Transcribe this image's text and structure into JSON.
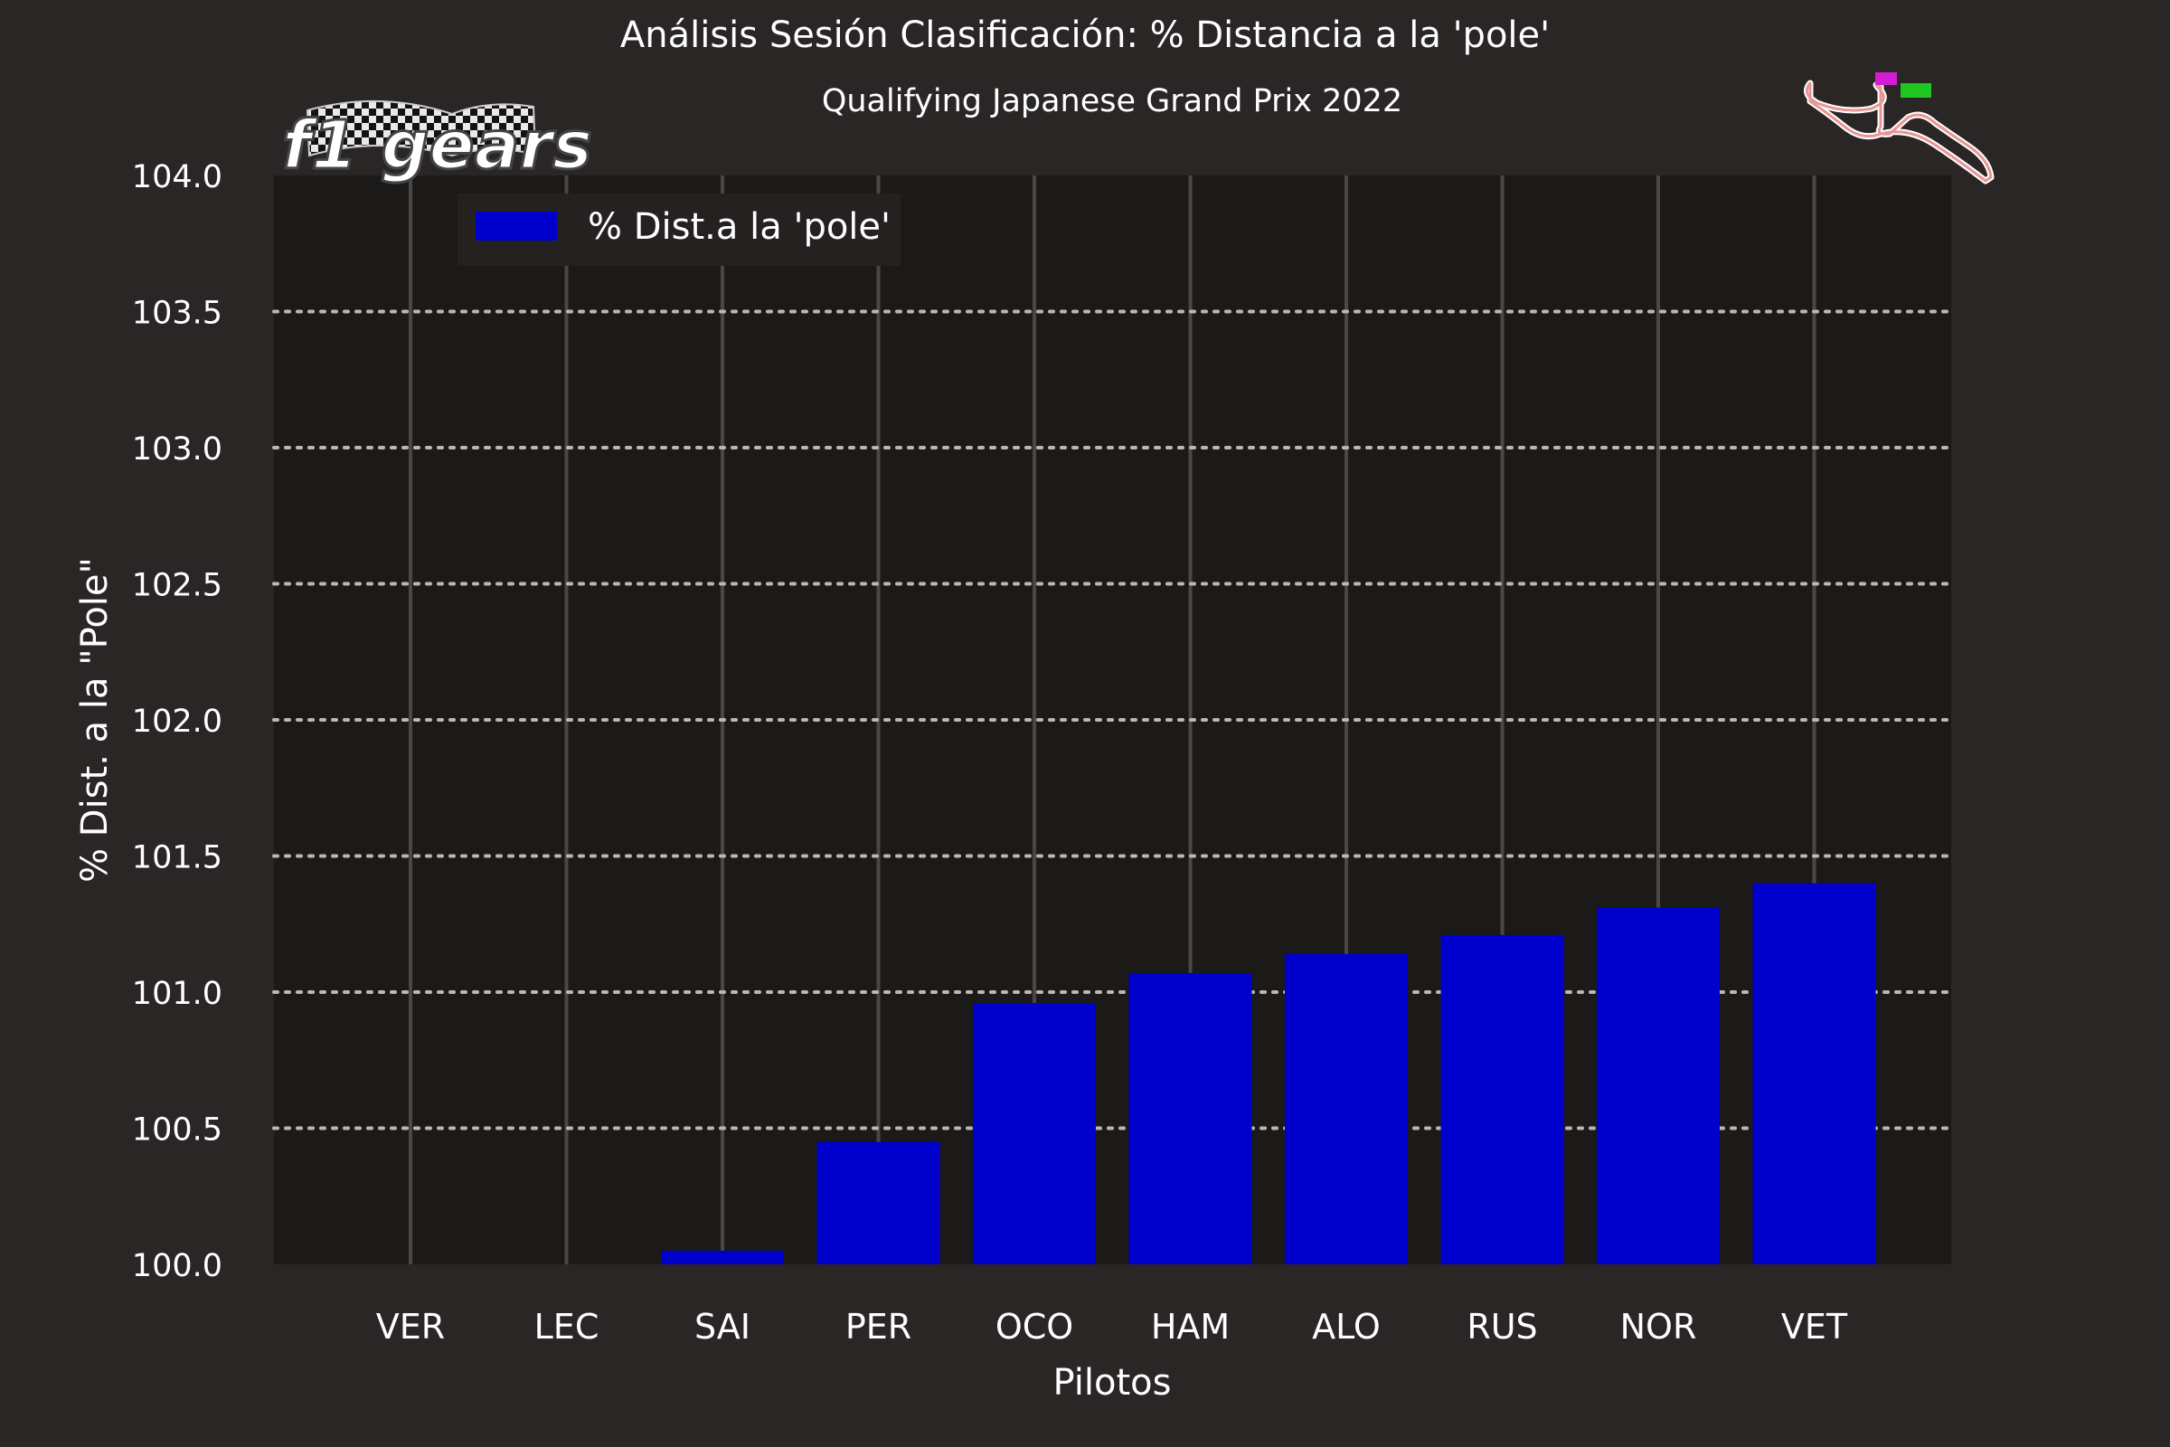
{
  "chart_data": {
    "type": "bar",
    "title": "Análisis Sesión Clasificación: % Distancia a la 'pole'",
    "subtitle": "Qualifying Japanese Grand Prix 2022",
    "xlabel": "Pilotos",
    "ylabel": "% Dist. a la \"Pole\"",
    "categories": [
      "VER",
      "LEC",
      "SAI",
      "PER",
      "OCO",
      "HAM",
      "ALO",
      "RUS",
      "NOR",
      "VET"
    ],
    "series": [
      {
        "name": "% Dist.a la 'pole'",
        "values": [
          100.0,
          100.0,
          100.05,
          100.45,
          100.96,
          101.07,
          101.14,
          101.21,
          101.31,
          101.4
        ],
        "color": "#0000cd"
      }
    ],
    "ylim": [
      100.0,
      104.0
    ],
    "yticks": [
      "100.0",
      "100.5",
      "101.0",
      "101.5",
      "102.0",
      "102.5",
      "103.0",
      "103.5",
      "104.0"
    ],
    "grid": "horizontal dotted",
    "legend": "top-left",
    "logo_text": "f1 gears",
    "colors": {
      "background": "#2a2625",
      "plot_background": "#1c1a19",
      "bar": "#0000cd",
      "grid": "#bfb6b3",
      "vertical_line": "#4d4646",
      "text": "#ffffff"
    }
  }
}
